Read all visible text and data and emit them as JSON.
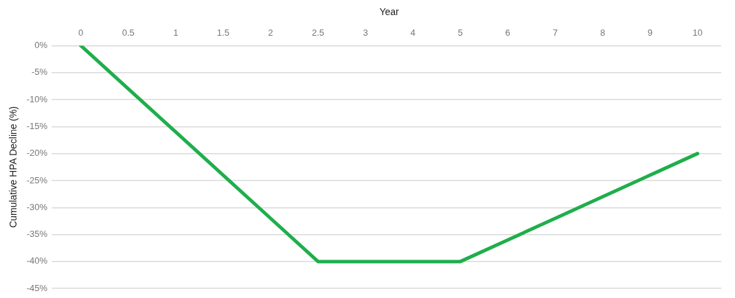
{
  "chart_data": {
    "type": "line",
    "xlabel": "Year",
    "ylabel": "Cumulative HPA Decline (%)",
    "categories": [
      "0",
      "0.5",
      "1",
      "1.5",
      "2",
      "2.5",
      "3",
      "4",
      "5",
      "6",
      "7",
      "8",
      "9",
      "10"
    ],
    "series": [
      {
        "color": "#1fae4b",
        "values": [
          0,
          -8,
          -16,
          -24,
          -32,
          -40,
          -40,
          -40,
          -40,
          -36,
          -32,
          -28,
          -24,
          -20
        ]
      }
    ],
    "ylim": [
      -45,
      0
    ],
    "yticks": [
      {
        "value": 0,
        "label": "0%"
      },
      {
        "value": -5,
        "label": "-5%"
      },
      {
        "value": -10,
        "label": "-10%"
      },
      {
        "value": -15,
        "label": "-15%"
      },
      {
        "value": -20,
        "label": "-20%"
      },
      {
        "value": -25,
        "label": "-25%"
      },
      {
        "value": -30,
        "label": "-30%"
      },
      {
        "value": -35,
        "label": "-35%"
      },
      {
        "value": -40,
        "label": "-40%"
      },
      {
        "value": -45,
        "label": "-45%"
      }
    ],
    "grid": "y",
    "legend": false,
    "marker": "none",
    "line_style": "solid"
  }
}
